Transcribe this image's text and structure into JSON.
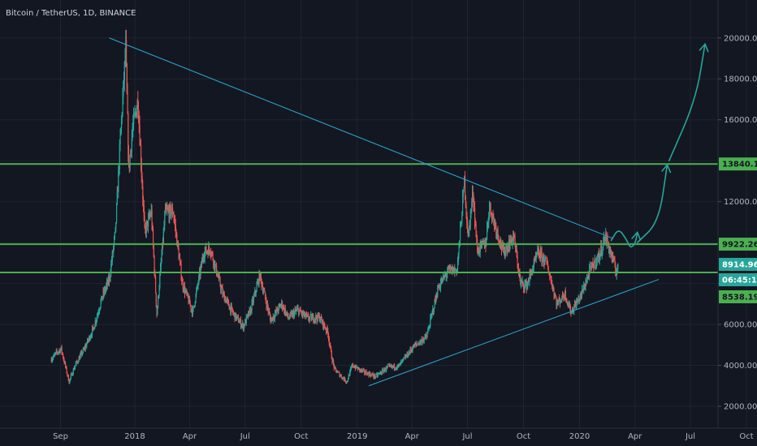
{
  "title": "Bitcoin / TetherUS, 1D, BINANCE",
  "chart_data": {
    "type": "candlestick",
    "symbol": "Bitcoin / TetherUS",
    "interval": "1D",
    "exchange": "BINANCE",
    "x_ticks": [
      "Sep",
      "2018",
      "Apr",
      "Jul",
      "Oct",
      "2019",
      "Apr",
      "Jul",
      "Oct",
      "2020",
      "Apr",
      "Jul",
      "Oct"
    ],
    "x_tick_dates": [
      "2017-09-01",
      "2018-01-01",
      "2018-04-01",
      "2018-07-01",
      "2018-10-01",
      "2019-01-01",
      "2019-04-01",
      "2019-07-01",
      "2019-10-01",
      "2020-01-01",
      "2020-04-01",
      "2020-07-01",
      "2020-10-01"
    ],
    "y_ticks": [
      "20000.00",
      "18000.00",
      "16000.00",
      "14000.00",
      "12000.00",
      "10000.00",
      "8000.00",
      "6000.00",
      "4000.00",
      "2000.00"
    ],
    "y_range": [
      800,
      21700
    ],
    "x_range": [
      "2017-08-01",
      "2020-10-20"
    ],
    "price_series": [
      [
        "2017-08-17",
        4300
      ],
      [
        "2017-08-25",
        4600
      ],
      [
        "2017-09-02",
        4800
      ],
      [
        "2017-09-15",
        3200
      ],
      [
        "2017-09-25",
        4000
      ],
      [
        "2017-10-10",
        4800
      ],
      [
        "2017-10-25",
        5800
      ],
      [
        "2017-11-08",
        7300
      ],
      [
        "2017-11-20",
        8200
      ],
      [
        "2017-11-30",
        10500
      ],
      [
        "2017-12-08",
        15000
      ],
      [
        "2017-12-17",
        19500
      ],
      [
        "2017-12-22",
        13500
      ],
      [
        "2017-12-28",
        15500
      ],
      [
        "2018-01-06",
        17000
      ],
      [
        "2018-01-17",
        10500
      ],
      [
        "2018-01-28",
        11500
      ],
      [
        "2018-02-06",
        6500
      ],
      [
        "2018-02-20",
        11500
      ],
      [
        "2018-03-05",
        11500
      ],
      [
        "2018-03-20",
        8000
      ],
      [
        "2018-04-06",
        6600
      ],
      [
        "2018-04-24",
        9500
      ],
      [
        "2018-05-05",
        9700
      ],
      [
        "2018-05-25",
        7500
      ],
      [
        "2018-06-12",
        6500
      ],
      [
        "2018-06-28",
        5900
      ],
      [
        "2018-07-10",
        6700
      ],
      [
        "2018-07-25",
        8400
      ],
      [
        "2018-08-12",
        6200
      ],
      [
        "2018-08-30",
        7000
      ],
      [
        "2018-09-10",
        6300
      ],
      [
        "2018-09-25",
        6700
      ],
      [
        "2018-10-12",
        6300
      ],
      [
        "2018-10-31",
        6350
      ],
      [
        "2018-11-14",
        5600
      ],
      [
        "2018-11-20",
        4400
      ],
      [
        "2018-11-25",
        3800
      ],
      [
        "2018-12-08",
        3400
      ],
      [
        "2018-12-15",
        3200
      ],
      [
        "2018-12-24",
        4000
      ],
      [
        "2019-01-10",
        3700
      ],
      [
        "2019-01-31",
        3450
      ],
      [
        "2019-02-20",
        3900
      ],
      [
        "2019-03-10",
        3950
      ],
      [
        "2019-04-03",
        4900
      ],
      [
        "2019-04-25",
        5400
      ],
      [
        "2019-05-14",
        7800
      ],
      [
        "2019-05-30",
        8600
      ],
      [
        "2019-06-14",
        8700
      ],
      [
        "2019-06-26",
        13000
      ],
      [
        "2019-07-02",
        10200
      ],
      [
        "2019-07-10",
        12500
      ],
      [
        "2019-07-17",
        9600
      ],
      [
        "2019-07-31",
        10000
      ],
      [
        "2019-08-06",
        11800
      ],
      [
        "2019-08-29",
        9500
      ],
      [
        "2019-09-15",
        10300
      ],
      [
        "2019-09-26",
        8000
      ],
      [
        "2019-10-06",
        7900
      ],
      [
        "2019-10-25",
        9500
      ],
      [
        "2019-11-08",
        9000
      ],
      [
        "2019-11-25",
        7000
      ],
      [
        "2019-12-08",
        7500
      ],
      [
        "2019-12-18",
        6600
      ],
      [
        "2020-01-03",
        7400
      ],
      [
        "2020-01-19",
        8700
      ],
      [
        "2020-02-03",
        9400
      ],
      [
        "2020-02-12",
        10300
      ],
      [
        "2020-02-20",
        9600
      ],
      [
        "2020-03-01",
        8600
      ],
      [
        "2020-03-04",
        8850
      ]
    ],
    "horizontal_levels": [
      {
        "price": 13840.12,
        "label": "13840.12",
        "color": "#4caf50"
      },
      {
        "price": 9922.26,
        "label": "9922.26",
        "color": "#4caf50"
      },
      {
        "price": 8538.19,
        "label": "8538.19",
        "color": "#4caf50"
      }
    ],
    "price_labels": [
      {
        "text": "8914.96",
        "color": "#26a69a"
      },
      {
        "text": "06:45:16",
        "color": "#26a69a"
      }
    ],
    "trend_lines": [
      {
        "from": [
          "2017-11-20",
          20000
        ],
        "to": [
          "2020-02-25",
          10200
        ],
        "color": "#2aa9d1"
      },
      {
        "from": [
          "2019-01-20",
          3000
        ],
        "to": [
          "2020-05-10",
          8200
        ],
        "color": "#2aa9d1"
      }
    ],
    "arrows": [
      {
        "path": [
          [
            "2020-02-22",
            10100
          ],
          [
            "2020-03-05",
            10700
          ],
          [
            "2020-03-18",
            10150
          ],
          [
            "2020-03-25",
            9700
          ],
          [
            "2020-04-02",
            10000
          ],
          [
            "2020-04-05",
            10500
          ]
        ],
        "color": "#26a69a"
      },
      {
        "path": [
          [
            "2020-04-05",
            10000
          ],
          [
            "2020-05-10",
            11000
          ],
          [
            "2020-05-24",
            13800
          ]
        ],
        "color": "#26a69a"
      },
      {
        "path": [
          [
            "2020-05-27",
            14000
          ],
          [
            "2020-07-10",
            17000
          ],
          [
            "2020-07-25",
            19700
          ]
        ],
        "color": "#26a69a"
      }
    ],
    "colors": {
      "up": "#26a69a",
      "down": "#ef5350",
      "background": "#131722",
      "grid": "#1f2330",
      "axis_text": "#b2b5be"
    },
    "grid": true
  }
}
